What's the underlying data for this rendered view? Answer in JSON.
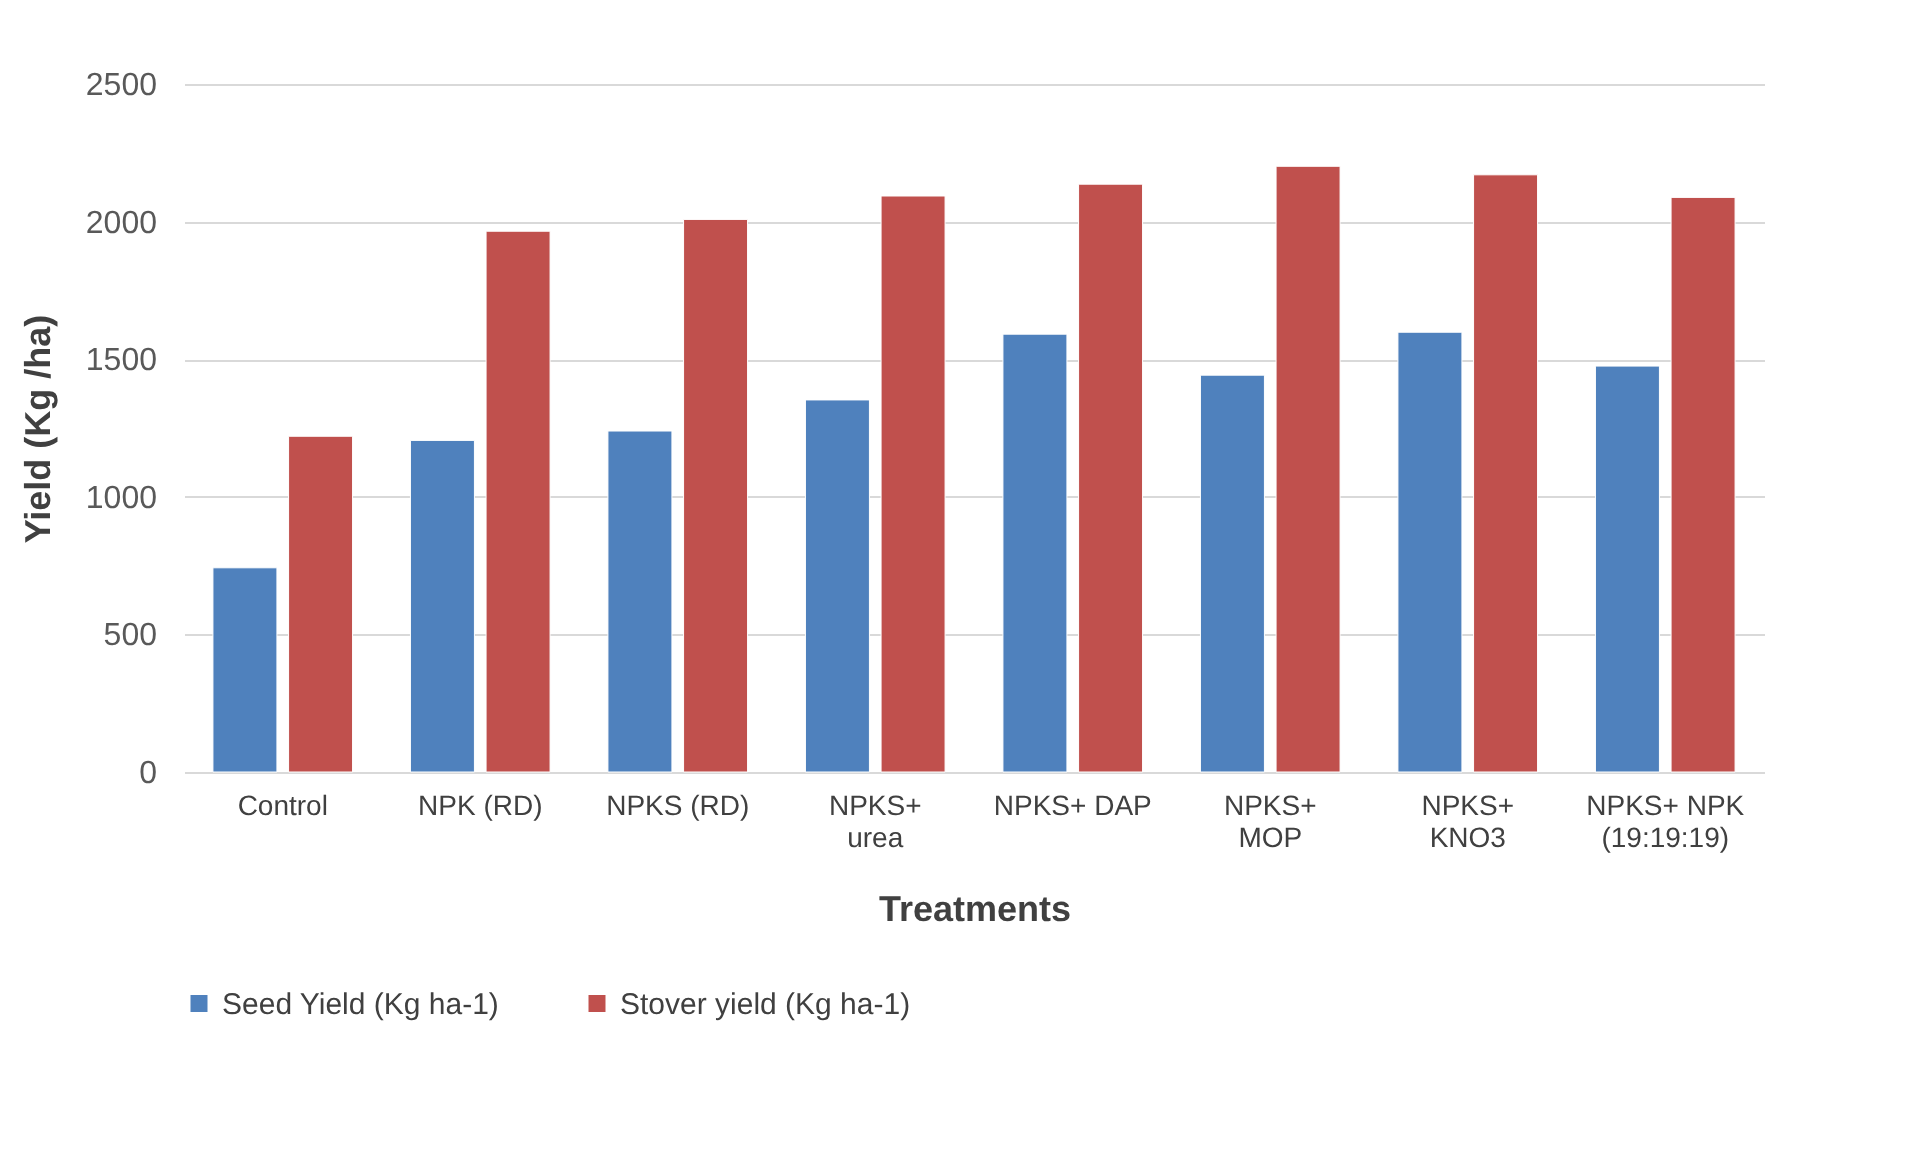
{
  "chart_data": {
    "type": "bar",
    "categories": [
      "Control",
      "NPK (RD)",
      "NPKS (RD)",
      "NPKS+\nurea",
      "NPKS+ DAP",
      "NPKS+\nMOP",
      "NPKS+\nKNO3",
      "NPKS+ NPK\n(19:19:19)"
    ],
    "series": [
      {
        "name": "Seed Yield (Kg ha-1)",
        "color": "#4f81bd",
        "values": [
          742,
          1205,
          1239,
          1352,
          1591,
          1442,
          1598,
          1475
        ]
      },
      {
        "name": "Stover yield (Kg ha-1)",
        "color": "#c0504d",
        "values": [
          1220,
          1965,
          2008,
          2093,
          2136,
          2201,
          2170,
          2088
        ]
      }
    ],
    "xlabel": "Treatments",
    "ylabel": "Yield (Kg /ha)",
    "ylim": [
      0,
      2500
    ],
    "yticks": [
      0,
      500,
      1000,
      1500,
      2000,
      2500
    ],
    "grid": "y",
    "legend": "bottom"
  }
}
